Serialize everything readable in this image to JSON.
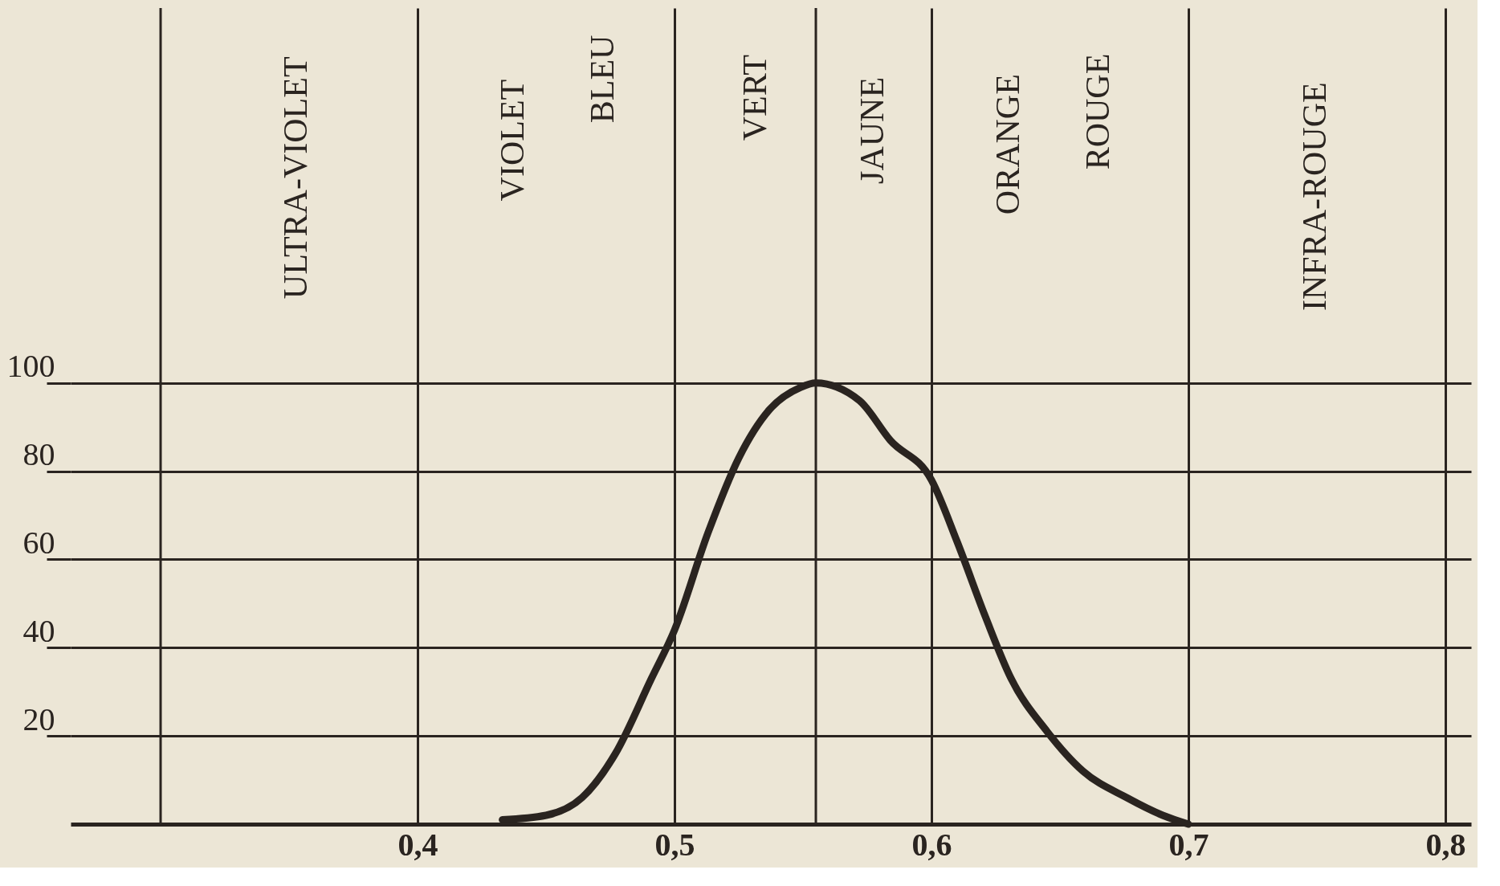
{
  "chart_data": {
    "type": "line",
    "x": [
      0.433,
      0.45,
      0.464,
      0.477,
      0.491,
      0.5,
      0.513,
      0.525,
      0.537,
      0.549,
      0.555,
      0.572,
      0.584,
      0.6,
      0.61,
      0.621,
      0.631,
      0.645,
      0.659,
      0.676,
      0.69,
      0.7
    ],
    "series": [
      {
        "color": "#2a2420",
        "values": [
          1,
          2,
          6,
          16,
          33,
          44,
          66,
          83,
          94,
          99,
          100,
          96,
          87,
          78,
          64,
          47,
          33,
          21,
          12,
          6,
          2,
          0
        ]
      }
    ],
    "xlim": [
      0.265,
      0.81
    ],
    "ylim": [
      0,
      185
    ],
    "xticks": [
      {
        "value": 0.4,
        "label": "0,4"
      },
      {
        "value": 0.5,
        "label": "0,5"
      },
      {
        "value": 0.6,
        "label": "0,6"
      },
      {
        "value": 0.7,
        "label": "0,7"
      },
      {
        "value": 0.8,
        "label": "0,8"
      }
    ],
    "yticks": [
      20,
      40,
      60,
      80,
      100
    ],
    "grid": true,
    "marker": "none",
    "line_style": "solid",
    "ref_lines": [
      {
        "axis": "x",
        "value": 0.3,
        "color": "#2a2420"
      },
      {
        "axis": "x",
        "value": 0.555,
        "color": "#2a2420"
      }
    ],
    "annotations": [
      "ULTRA-VIOLET",
      "VIOLET",
      "BLEU",
      "VERT",
      "JAUNE",
      "ORANGE",
      "ROUGE",
      "INFRA-ROUGE"
    ]
  }
}
